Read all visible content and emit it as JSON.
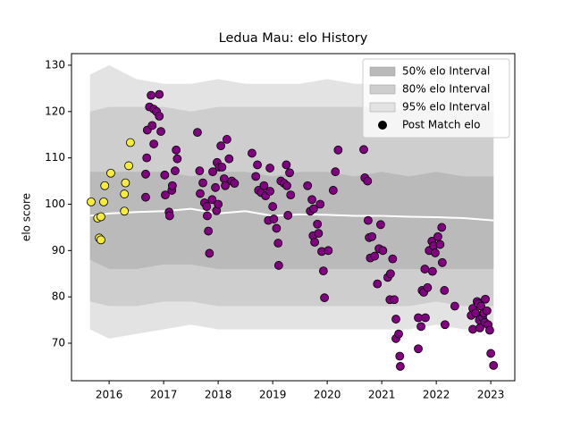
{
  "chart_data": {
    "type": "scatter",
    "title": "Ledua Mau: elo History",
    "ylabel": "elo score",
    "xlim": [
      2015.31,
      2023.44
    ],
    "ylim": [
      61.9,
      132.5
    ],
    "xticks": [
      2016,
      2017,
      2018,
      2019,
      2020,
      2021,
      2022,
      2023
    ],
    "yticks": [
      70,
      80,
      90,
      100,
      110,
      120,
      130
    ],
    "legend": "upper right",
    "band_x": [
      2015.65,
      2016,
      2016.5,
      2017,
      2017.5,
      2018,
      2018.5,
      2019,
      2019.5,
      2020,
      2020.5,
      2021,
      2021.5,
      2022,
      2022.5,
      2023.05
    ],
    "bands": [
      {
        "name": "50% elo Interval",
        "color": "#bababa",
        "upper": [
          107,
          107,
          107,
          107,
          106,
          107,
          107,
          106,
          107,
          107,
          106,
          107,
          106,
          107,
          106,
          106
        ],
        "lower": [
          88,
          86,
          86,
          87,
          87,
          86,
          86,
          86,
          86,
          86,
          86,
          86,
          86,
          86,
          86,
          86
        ]
      },
      {
        "name": "80% elo Interval",
        "color": "#cecece",
        "upper": [
          120,
          121,
          121,
          121,
          120,
          121,
          121,
          121,
          121,
          121,
          121,
          121,
          120,
          121,
          120,
          120
        ],
        "lower": [
          79,
          78,
          78,
          79,
          79,
          78,
          78,
          78,
          78,
          78,
          78,
          78,
          78,
          79,
          78,
          78
        ]
      },
      {
        "name": "95% elo Interval",
        "color": "#e3e3e3",
        "upper": [
          128,
          130,
          127,
          126,
          126,
          127,
          126,
          126,
          126,
          127,
          126,
          126,
          125,
          126,
          126,
          126
        ],
        "lower": [
          73,
          71,
          72,
          73,
          74,
          73,
          73,
          73,
          73,
          73,
          73,
          73,
          73,
          74,
          73,
          73
        ]
      }
    ],
    "median": {
      "color": "#ffffff",
      "values": [
        97.5,
        98,
        98.3,
        98.5,
        99,
        98,
        98.5,
        97.5,
        97.8,
        97.7,
        97.5,
        97.5,
        97.3,
        97.2,
        97,
        96.5
      ]
    },
    "series": [
      {
        "name": "Post Match elo",
        "legend_color": "#000000",
        "edgecolor": "#000000",
        "x": [
          2015.67,
          2015.79,
          2015.82,
          2015.85,
          2015.85,
          2015.9,
          2015.92,
          2016.03,
          2016.28,
          2016.28,
          2016.3,
          2016.36,
          2016.39,
          2016.67,
          2016.67,
          2016.69,
          2016.7,
          2016.74,
          2016.77,
          2016.79,
          2016.82,
          2016.82,
          2016.87,
          2016.92,
          2016.92,
          2016.95,
          2017.02,
          2017.03,
          2017.1,
          2017.11,
          2017.15,
          2017.16,
          2017.21,
          2017.23,
          2017.25,
          2017.62,
          2017.66,
          2017.67,
          2017.72,
          2017.75,
          2017.79,
          2017.8,
          2017.82,
          2017.84,
          2017.89,
          2017.9,
          2017.95,
          2017.97,
          2017.98,
          2018.0,
          2018.02,
          2018.05,
          2018.07,
          2018.11,
          2018.13,
          2018.16,
          2018.2,
          2018.25,
          2018.3,
          2018.62,
          2018.69,
          2018.72,
          2018.74,
          2018.79,
          2018.84,
          2018.87,
          2018.92,
          2018.95,
          2018.95,
          2019.0,
          2019.02,
          2019.07,
          2019.1,
          2019.11,
          2019.15,
          2019.21,
          2019.25,
          2019.26,
          2019.28,
          2019.31,
          2019.33,
          2019.64,
          2019.69,
          2019.72,
          2019.74,
          2019.75,
          2019.77,
          2019.82,
          2019.84,
          2019.87,
          2019.9,
          2019.93,
          2019.95,
          2020.02,
          2020.11,
          2020.15,
          2020.2,
          2020.67,
          2020.69,
          2020.74,
          2020.75,
          2020.77,
          2020.79,
          2020.82,
          2020.87,
          2020.92,
          2020.95,
          2020.98,
          2021.02,
          2021.11,
          2021.15,
          2021.16,
          2021.2,
          2021.23,
          2021.26,
          2021.26,
          2021.31,
          2021.33,
          2021.34,
          2021.67,
          2021.67,
          2021.72,
          2021.74,
          2021.77,
          2021.79,
          2021.8,
          2021.84,
          2021.87,
          2021.92,
          2021.93,
          2021.95,
          2021.98,
          2022.03,
          2022.07,
          2022.1,
          2022.11,
          2022.15,
          2022.16,
          2022.34,
          2022.64,
          2022.67,
          2022.67,
          2022.72,
          2022.75,
          2022.77,
          2022.79,
          2022.8,
          2022.82,
          2022.85,
          2022.87,
          2022.89,
          2022.9,
          2022.93,
          2022.95,
          2022.98,
          2023.0,
          2023.05
        ],
        "values": [
          100.5,
          97,
          92.7,
          92.3,
          97.3,
          100.5,
          104,
          106.7,
          98.5,
          102.2,
          104.6,
          108.3,
          113.3,
          101.5,
          106.5,
          110,
          116,
          121,
          123.5,
          117,
          113,
          120.5,
          120,
          119,
          123.7,
          115.7,
          106.3,
          102,
          98.3,
          97.5,
          103,
          104,
          107.2,
          111.7,
          109.8,
          115.5,
          107.2,
          102.3,
          104.6,
          100.3,
          99.5,
          97.5,
          94.2,
          89.4,
          101,
          107,
          103.6,
          98.6,
          109,
          100,
          108,
          112.6,
          108,
          105.5,
          104,
          114,
          109.8,
          105,
          104.5,
          111,
          106,
          108.5,
          103,
          102.5,
          104,
          101.8,
          96.5,
          107.8,
          102.8,
          99.5,
          96.8,
          94.8,
          91.6,
          86.8,
          105,
          104.5,
          108.5,
          104,
          97.6,
          106.8,
          102,
          104,
          98.5,
          101,
          93.2,
          99,
          91.8,
          95.7,
          93.7,
          100,
          89.8,
          85.6,
          79.8,
          90,
          103,
          107,
          111.7,
          111.8,
          105.7,
          105,
          96.5,
          92.8,
          88.4,
          93,
          88.8,
          82.8,
          90.4,
          95.6,
          90,
          84.2,
          79.4,
          85,
          88.2,
          79.4,
          75.2,
          71,
          72,
          67.2,
          65,
          68.8,
          75.5,
          73.6,
          81.4,
          81,
          86,
          75.5,
          82,
          90,
          92,
          85.5,
          91,
          89.5,
          93,
          91.3,
          95,
          87.4,
          81.4,
          74,
          78,
          76,
          73,
          77.5,
          76.5,
          79,
          78.5,
          75,
          73.3,
          78,
          75.5,
          76.5,
          74.5,
          79.5,
          77,
          74,
          72.8,
          67.8,
          65.2
        ],
        "colors": [
          "#f5ed3a",
          "#f5ed3a",
          "#f5ed3a",
          "#f5ed3a",
          "#f5ed3a",
          "#f5ed3a",
          "#f5ed3a",
          "#f5ed3a",
          "#f5ed3a",
          "#f5ed3a",
          "#f5ed3a",
          "#f5ed3a",
          "#f5ed3a",
          "#800080",
          "#800080",
          "#800080",
          "#800080",
          "#800080",
          "#800080",
          "#800080",
          "#800080",
          "#800080",
          "#800080",
          "#800080",
          "#800080",
          "#800080",
          "#800080",
          "#800080",
          "#800080",
          "#800080",
          "#800080",
          "#800080",
          "#800080",
          "#800080",
          "#800080",
          "#800080",
          "#800080",
          "#800080",
          "#800080",
          "#800080",
          "#800080",
          "#800080",
          "#800080",
          "#800080",
          "#800080",
          "#800080",
          "#800080",
          "#800080",
          "#800080",
          "#800080",
          "#800080",
          "#800080",
          "#800080",
          "#800080",
          "#800080",
          "#800080",
          "#800080",
          "#800080",
          "#800080",
          "#800080",
          "#800080",
          "#800080",
          "#800080",
          "#800080",
          "#800080",
          "#800080",
          "#800080",
          "#800080",
          "#800080",
          "#800080",
          "#800080",
          "#800080",
          "#800080",
          "#800080",
          "#800080",
          "#800080",
          "#800080",
          "#800080",
          "#800080",
          "#800080",
          "#800080",
          "#800080",
          "#800080",
          "#800080",
          "#800080",
          "#800080",
          "#800080",
          "#800080",
          "#800080",
          "#800080",
          "#800080",
          "#800080",
          "#800080",
          "#800080",
          "#800080",
          "#800080",
          "#800080",
          "#800080",
          "#800080",
          "#800080",
          "#800080",
          "#800080",
          "#800080",
          "#800080",
          "#800080",
          "#800080",
          "#800080",
          "#800080",
          "#800080",
          "#800080",
          "#800080",
          "#800080",
          "#800080",
          "#800080",
          "#800080",
          "#800080",
          "#800080",
          "#800080",
          "#800080",
          "#800080",
          "#800080",
          "#800080",
          "#800080",
          "#800080",
          "#800080",
          "#800080",
          "#800080",
          "#800080",
          "#800080",
          "#800080",
          "#800080",
          "#800080",
          "#800080",
          "#800080",
          "#800080",
          "#800080",
          "#800080",
          "#800080",
          "#800080",
          "#800080",
          "#800080",
          "#800080",
          "#800080",
          "#800080",
          "#800080",
          "#800080",
          "#800080",
          "#800080",
          "#800080",
          "#800080",
          "#800080",
          "#800080",
          "#800080",
          "#800080",
          "#800080",
          "#800080",
          "#800080"
        ]
      }
    ]
  }
}
